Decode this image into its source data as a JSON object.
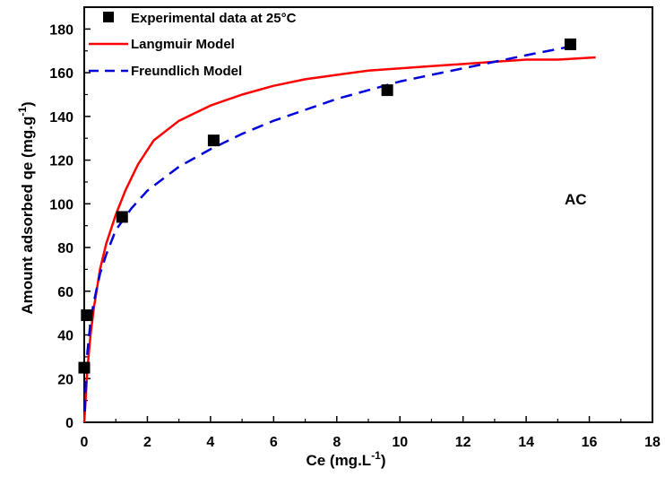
{
  "chart_data": {
    "type": "scatter",
    "xlabel": "Ce (mg.L",
    "xlabel_sup": "-1",
    "xlabel_end": ")",
    "ylabel": "Amount adsorbed qe (mg.g",
    "ylabel_sup": "-1",
    "ylabel_end": ")",
    "xlim": [
      0,
      18
    ],
    "ylim": [
      0,
      190
    ],
    "xticks": [
      0,
      2,
      4,
      6,
      8,
      10,
      12,
      14,
      16,
      18
    ],
    "yticks": [
      0,
      20,
      40,
      60,
      80,
      100,
      120,
      140,
      160,
      180
    ],
    "grid": false,
    "legend_position": "top-left",
    "annotation": "AC",
    "series": [
      {
        "name": "Experimental data at 25°C",
        "kind": "markers",
        "marker": "square",
        "color": "#000000",
        "x": [
          0.0,
          0.08,
          1.2,
          4.1,
          9.6,
          15.4
        ],
        "y": [
          25,
          49,
          94,
          129,
          152,
          173
        ]
      },
      {
        "name": "Langmuir Model",
        "kind": "line",
        "style": "solid",
        "color": "#ff0000",
        "x": [
          0.0,
          0.1,
          0.2,
          0.3,
          0.5,
          0.7,
          1.0,
          1.3,
          1.7,
          2.2,
          3.0,
          4.0,
          5.0,
          6.0,
          7.0,
          8.0,
          9.0,
          10.0,
          11.0,
          12.0,
          13.0,
          14.0,
          15.0,
          16.2
        ],
        "y": [
          0,
          24,
          40,
          52,
          70,
          82,
          95,
          106,
          118,
          129,
          138,
          145,
          150,
          154,
          157,
          159,
          161,
          162,
          163,
          164,
          165,
          166,
          166,
          167
        ]
      },
      {
        "name": "Freundlich Model",
        "kind": "line",
        "style": "dashed",
        "color": "#0000dd",
        "x": [
          0.02,
          0.05,
          0.1,
          0.2,
          0.3,
          0.5,
          0.7,
          1.0,
          1.5,
          2.0,
          3.0,
          4.0,
          5.0,
          6.0,
          7.0,
          8.0,
          9.0,
          10.0,
          11.0,
          12.0,
          13.0,
          14.0,
          15.4
        ],
        "y": [
          5,
          20,
          32,
          46,
          55,
          68,
          77,
          88,
          98,
          106,
          117,
          125,
          132,
          138,
          143,
          148,
          152,
          156,
          159,
          162,
          165,
          168,
          172
        ]
      }
    ]
  }
}
